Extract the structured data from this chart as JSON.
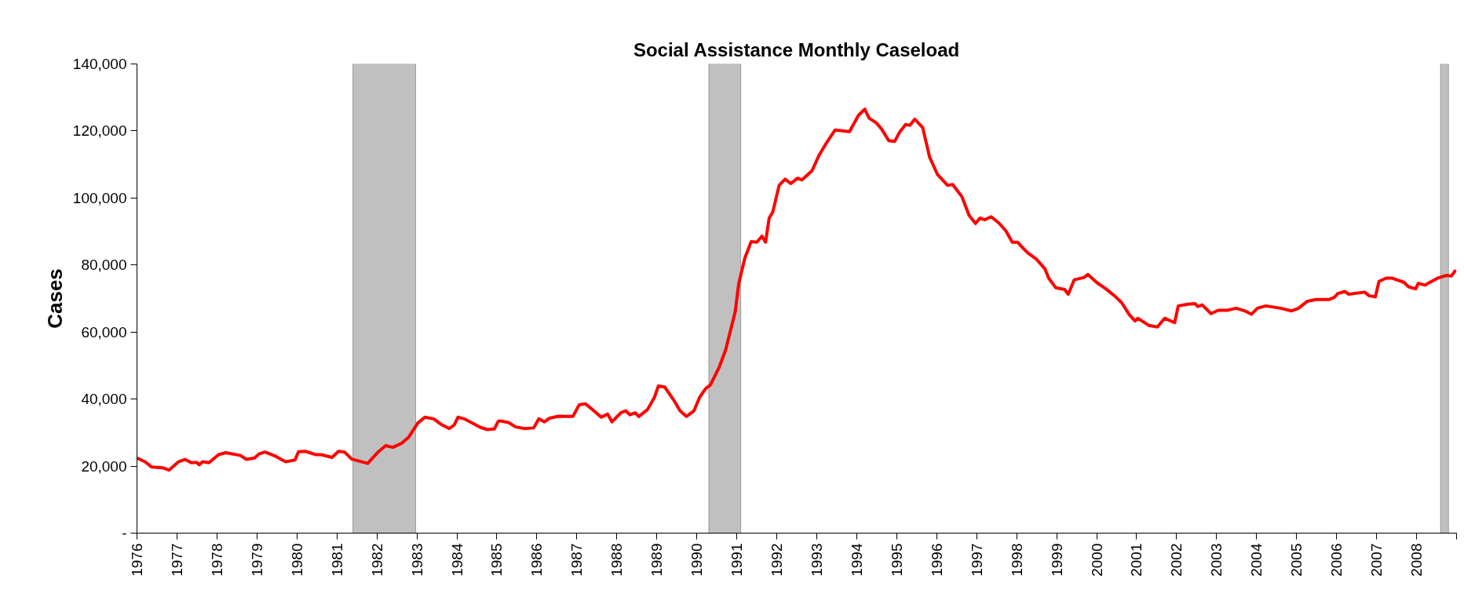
{
  "chart_data": {
    "type": "line",
    "title": "Social Assistance Monthly Caseload",
    "ylabel": "Cases",
    "xlim": [
      1976,
      2009
    ],
    "xticks": [
      1976,
      1977,
      1978,
      1979,
      1980,
      1981,
      1982,
      1983,
      1984,
      1985,
      1986,
      1987,
      1988,
      1989,
      1990,
      1991,
      1992,
      1993,
      1994,
      1995,
      1996,
      1997,
      1998,
      1999,
      2000,
      2001,
      2002,
      2003,
      2004,
      2005,
      2006,
      2007,
      2008,
      {
        "value": 2009,
        "label": null
      }
    ],
    "ylim": [
      0,
      140000
    ],
    "yticks": [
      {
        "value": 0,
        "label": "-"
      },
      {
        "value": 20000,
        "label": "20,000"
      },
      {
        "value": 40000,
        "label": "40,000"
      },
      {
        "value": 60000,
        "label": "60,000"
      },
      {
        "value": 80000,
        "label": "80,000"
      },
      {
        "value": 100000,
        "label": "100,000"
      },
      {
        "value": 120000,
        "label": "120,000"
      },
      {
        "value": 140000,
        "label": "140,000"
      }
    ],
    "grid": false,
    "marker": "none",
    "line_style": "solid",
    "bands": [
      {
        "axis": "x",
        "from": 1981.4,
        "to": 1982.97,
        "color": "#c0c0c0"
      },
      {
        "axis": "x",
        "from": 1990.3,
        "to": 1991.1,
        "color": "#c0c0c0"
      },
      {
        "axis": "x",
        "from": 2008.6,
        "to": 2008.8,
        "color": "#c0c0c0"
      }
    ],
    "series": [
      {
        "color": "#ff0000",
        "x": [
          1976.0,
          1976.2,
          1976.37,
          1976.64,
          1976.8,
          1977.04,
          1977.2,
          1977.36,
          1977.49,
          1977.56,
          1977.64,
          1977.8,
          1978.04,
          1978.22,
          1978.58,
          1978.74,
          1978.94,
          1979.05,
          1979.2,
          1979.44,
          1979.59,
          1979.72,
          1979.95,
          1980.04,
          1980.21,
          1980.48,
          1980.61,
          1980.88,
          1981.04,
          1981.19,
          1981.37,
          1981.55,
          1981.77,
          1982.04,
          1982.22,
          1982.4,
          1982.62,
          1982.8,
          1983.02,
          1983.2,
          1983.42,
          1983.6,
          1983.81,
          1983.93,
          1984.03,
          1984.18,
          1984.36,
          1984.58,
          1984.76,
          1984.94,
          1985.03,
          1985.07,
          1985.29,
          1985.47,
          1985.7,
          1985.92,
          1986.05,
          1986.19,
          1986.32,
          1986.54,
          1986.9,
          1987.06,
          1987.21,
          1987.39,
          1987.61,
          1987.77,
          1987.88,
          1988.1,
          1988.22,
          1988.33,
          1988.46,
          1988.55,
          1988.77,
          1988.94,
          1989.04,
          1989.2,
          1989.44,
          1989.58,
          1989.74,
          1989.93,
          1990.07,
          1990.22,
          1990.34,
          1990.56,
          1990.72,
          1990.96,
          1991.05,
          1991.2,
          1991.36,
          1991.5,
          1991.63,
          1991.72,
          1991.81,
          1991.9,
          1992.06,
          1992.21,
          1992.35,
          1992.52,
          1992.63,
          1992.88,
          1993.06,
          1993.24,
          1993.46,
          1993.82,
          1994.04,
          1994.2,
          1994.31,
          1994.49,
          1994.62,
          1994.8,
          1994.95,
          1995.07,
          1995.22,
          1995.33,
          1995.45,
          1995.65,
          1995.82,
          1996.02,
          1996.27,
          1996.4,
          1996.63,
          1996.81,
          1996.97,
          1997.08,
          1997.2,
          1997.36,
          1997.55,
          1997.73,
          1997.89,
          1998.02,
          1998.13,
          1998.28,
          1998.49,
          1998.71,
          1998.8,
          1998.98,
          1999.2,
          1999.29,
          1999.44,
          1999.69,
          1999.78,
          2000.0,
          2000.23,
          2000.45,
          2000.63,
          2000.81,
          2000.96,
          2001.03,
          2001.3,
          2001.52,
          2001.7,
          2001.95,
          2002.04,
          2002.28,
          2002.46,
          2002.53,
          2002.64,
          2002.86,
          2003.04,
          2003.26,
          2003.49,
          2003.71,
          2003.87,
          2004.02,
          2004.23,
          2004.6,
          2004.87,
          2005.05,
          2005.27,
          2005.49,
          2005.81,
          2005.94,
          2006.03,
          2006.21,
          2006.3,
          2006.7,
          2006.82,
          2006.97,
          2007.06,
          2007.24,
          2007.38,
          2007.69,
          2007.8,
          2007.98,
          2008.04,
          2008.22,
          2008.31,
          2008.53,
          2008.75,
          2008.87,
          2008.98
        ],
        "values": [
          22400,
          21300,
          19700,
          19500,
          18800,
          21300,
          22000,
          21000,
          21100,
          20400,
          21300,
          21000,
          23400,
          24000,
          23200,
          22000,
          22400,
          23600,
          24200,
          23100,
          22100,
          21300,
          21800,
          24300,
          24400,
          23400,
          23400,
          22600,
          24400,
          24200,
          22100,
          21500,
          20800,
          24300,
          26100,
          25600,
          26800,
          28700,
          32800,
          34600,
          34100,
          32500,
          31200,
          32200,
          34600,
          34100,
          33000,
          31600,
          30900,
          31100,
          33300,
          33500,
          33000,
          31700,
          31200,
          31400,
          34100,
          33200,
          34300,
          34900,
          34800,
          38300,
          38600,
          36900,
          34600,
          35500,
          33200,
          35900,
          36500,
          35300,
          35900,
          34800,
          36900,
          40500,
          43900,
          43600,
          39400,
          36500,
          34800,
          36500,
          40500,
          43100,
          44200,
          49500,
          54600,
          66000,
          74500,
          82000,
          87000,
          86800,
          88600,
          86800,
          94000,
          95800,
          103800,
          105600,
          104300,
          105900,
          105400,
          108100,
          112800,
          116400,
          120300,
          119800,
          124600,
          126500,
          123800,
          122400,
          120600,
          117100,
          116900,
          119600,
          121900,
          121700,
          123500,
          121000,
          112300,
          107000,
          103800,
          104000,
          100400,
          94800,
          92400,
          94000,
          93500,
          94400,
          92600,
          90200,
          86800,
          86800,
          85400,
          83600,
          81800,
          78800,
          76100,
          73200,
          72700,
          71300,
          75600,
          76300,
          77200,
          74800,
          72900,
          70800,
          68700,
          65300,
          63300,
          64100,
          62000,
          61500,
          64100,
          62800,
          67800,
          68300,
          68500,
          67600,
          68100,
          65500,
          66500,
          66500,
          67100,
          66300,
          65300,
          67100,
          67800,
          67100,
          66300,
          67100,
          69200,
          69700,
          69700,
          70300,
          71500,
          72100,
          71300,
          71900,
          70800,
          70500,
          75100,
          76100,
          76100,
          74800,
          73500,
          72900,
          74500,
          74000,
          74700,
          76100,
          76900,
          76700,
          78500
        ]
      }
    ]
  }
}
